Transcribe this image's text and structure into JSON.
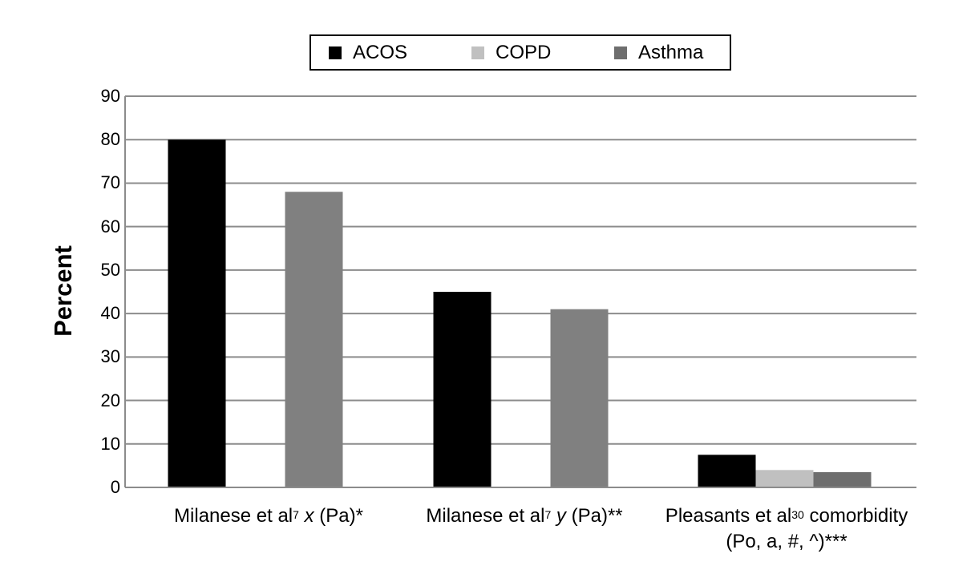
{
  "chart_data": {
    "type": "bar",
    "title": "",
    "xlabel": "",
    "ylabel": "Percent",
    "ylim": [
      0,
      90
    ],
    "yticks": [
      0,
      10,
      20,
      30,
      40,
      50,
      60,
      70,
      80,
      90
    ],
    "grid": true,
    "legend_position": "top-center",
    "categories": [
      {
        "parts": [
          {
            "t": "Milanese et al"
          },
          {
            "t": "7",
            "sup": true
          },
          {
            "t": " "
          },
          {
            "t": "x",
            "italic": true
          },
          {
            "t": " (Pa)*"
          }
        ]
      },
      {
        "parts": [
          {
            "t": "Milanese et al"
          },
          {
            "t": "7",
            "sup": true
          },
          {
            "t": " "
          },
          {
            "t": "y",
            "italic": true
          },
          {
            "t": " (Pa)**"
          }
        ]
      },
      {
        "parts": [
          {
            "t": "Pleasants et al"
          },
          {
            "t": "30",
            "sup": true
          },
          {
            "t": " comorbidity"
          }
        ],
        "line2": "(Po, a, #, ^)***"
      }
    ],
    "series": [
      {
        "name": "ACOS",
        "color": "#000000",
        "values": [
          80,
          45,
          7.5
        ]
      },
      {
        "name": "COPD",
        "color": "#c0c0c0",
        "values": [
          null,
          null,
          4
        ]
      },
      {
        "name": "Asthma",
        "color": "#6e6e6e",
        "values": [
          68,
          41,
          3.5
        ]
      }
    ],
    "bar_color_overrides": {
      "Asthma": [
        "#808080",
        "#808080",
        "#6e6e6e"
      ]
    }
  }
}
